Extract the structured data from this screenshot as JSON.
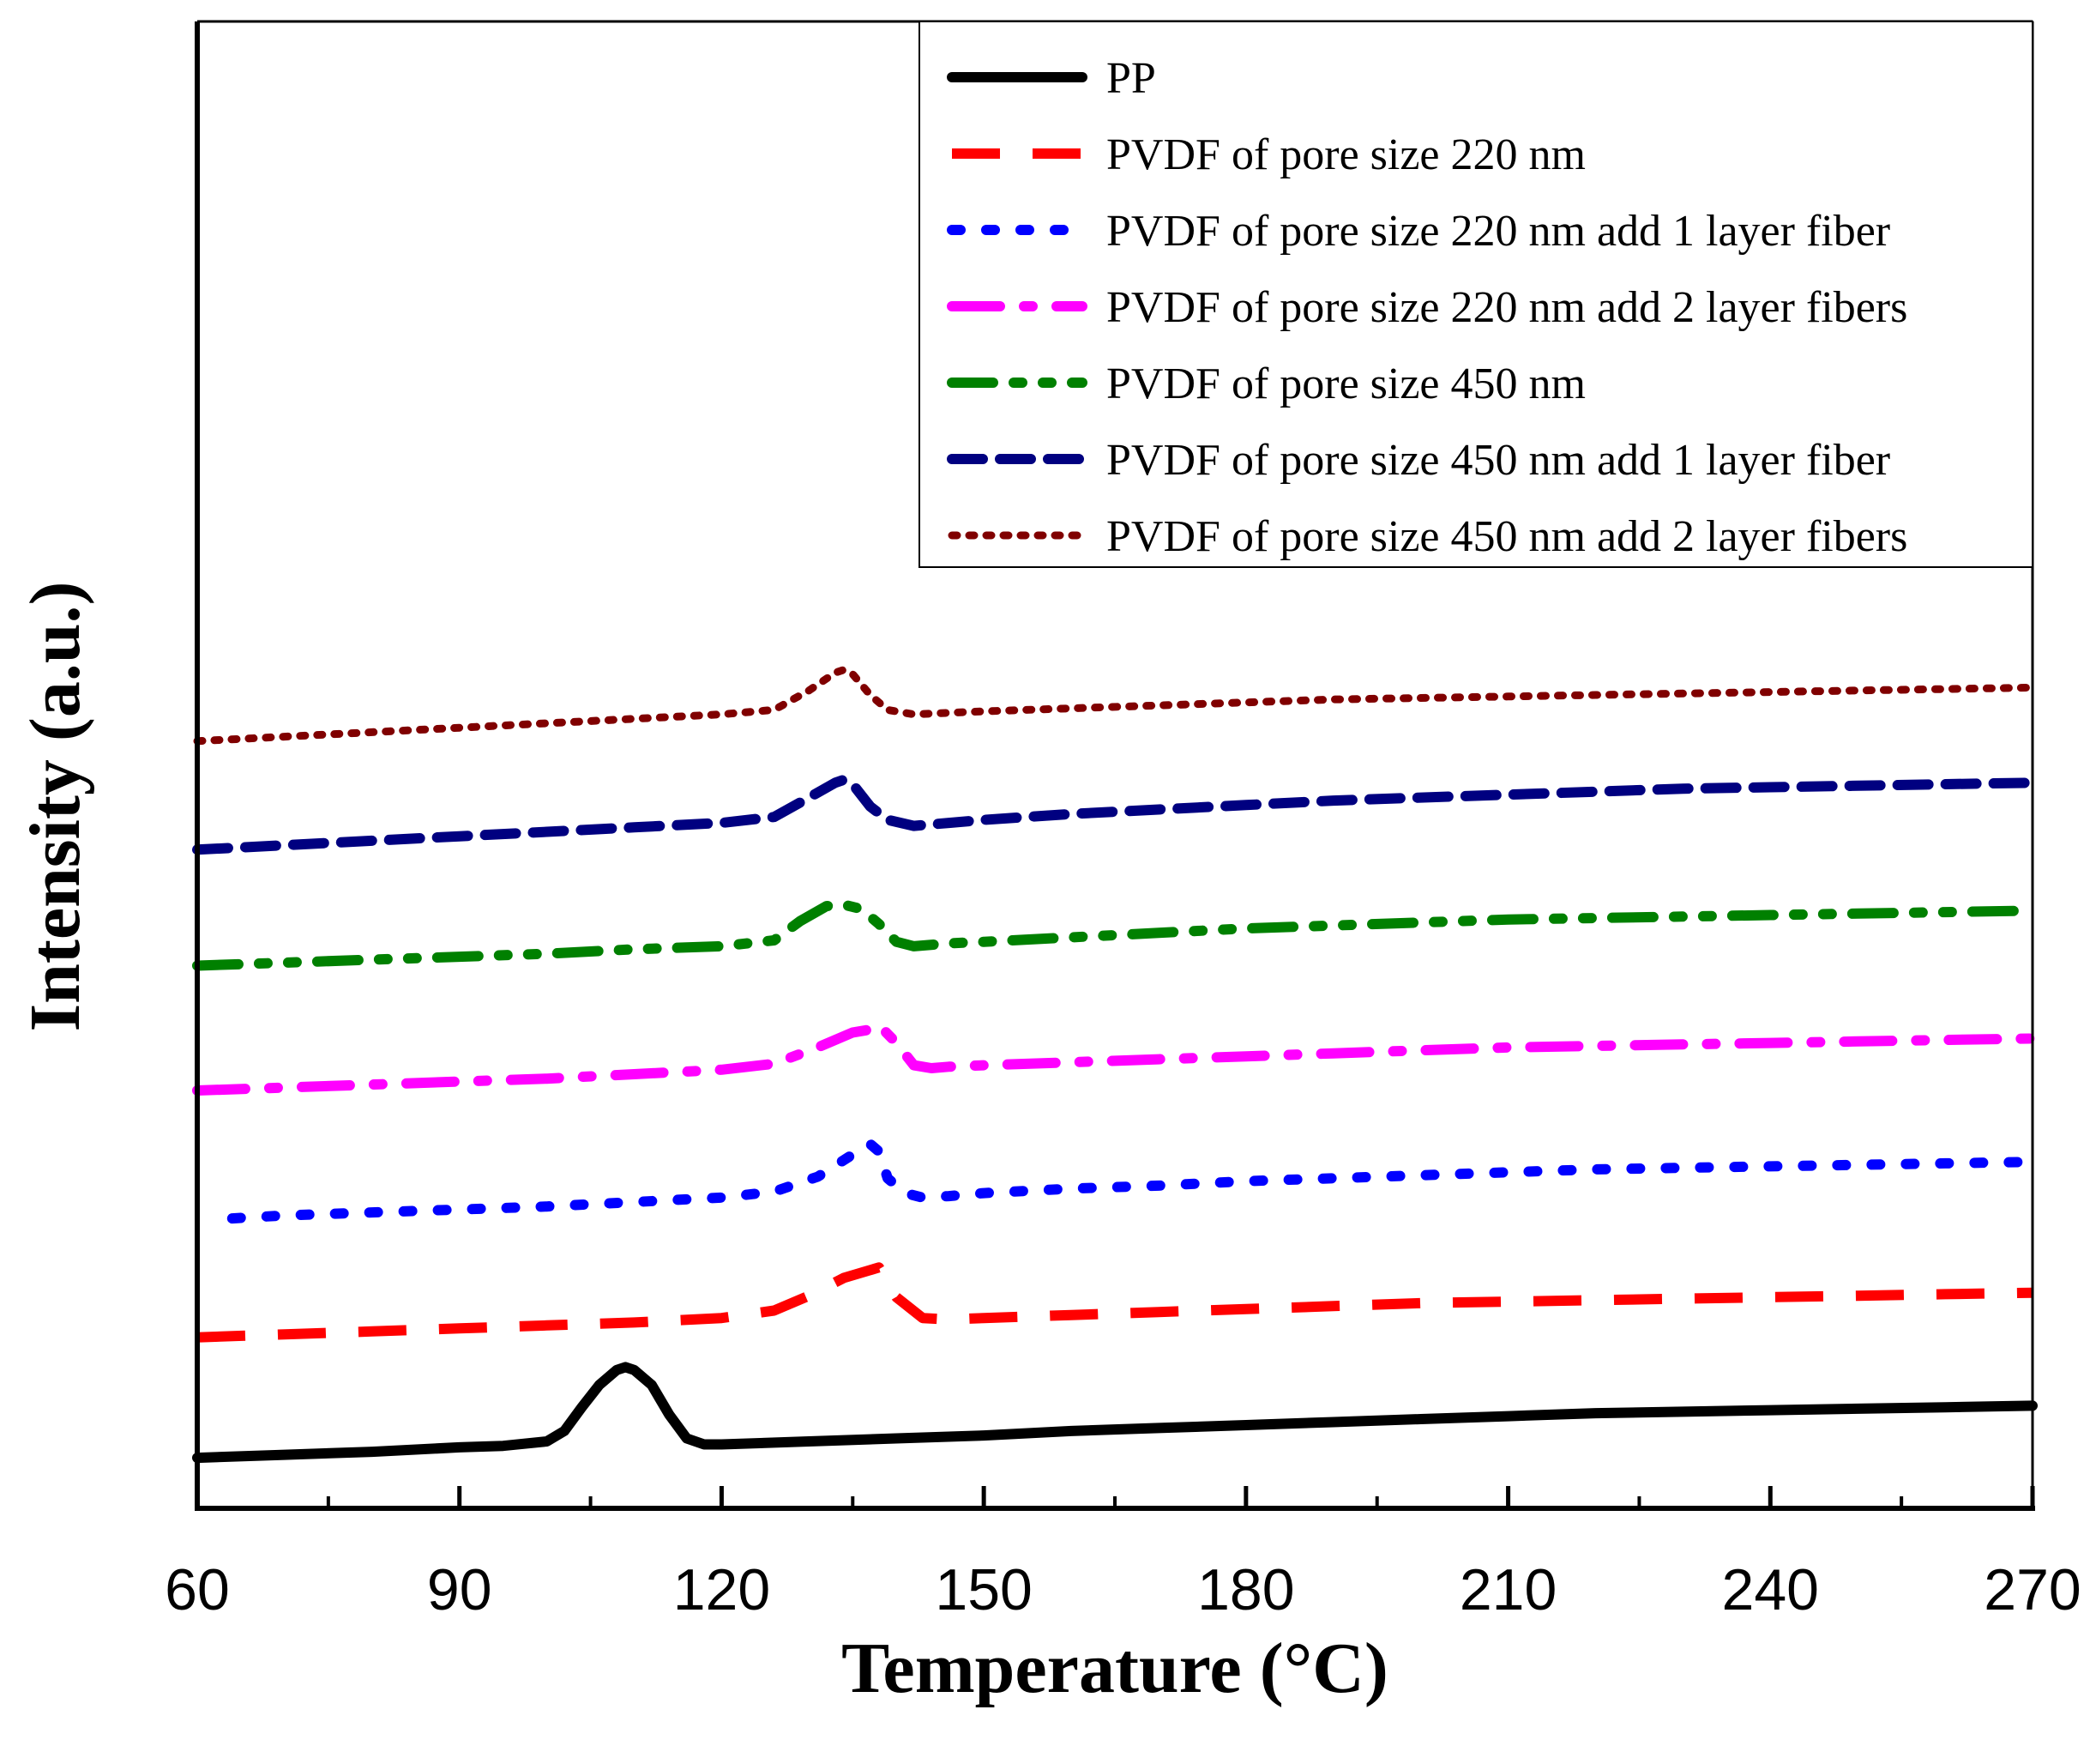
{
  "chart_data": {
    "type": "line",
    "title": "",
    "xlabel": "Temperature (°C)",
    "ylabel": "Intensity (a.u.)",
    "xlim": [
      60,
      270
    ],
    "ylim": [
      0,
      1
    ],
    "x_ticks": [
      60,
      90,
      120,
      150,
      180,
      210,
      240,
      270
    ],
    "y_ticks_shown": false,
    "grid": false,
    "legend_position": "top-right",
    "series": [
      {
        "name": "PP",
        "color": "#000000",
        "style": "solid",
        "x": [
          60,
          70,
          80,
          90,
          95,
          100,
          102,
          104,
          106,
          108,
          109,
          110,
          112,
          114,
          116,
          118,
          120,
          130,
          140,
          150,
          160,
          170,
          180,
          190,
          200,
          210,
          220,
          230,
          240,
          250,
          260,
          270
        ],
        "y": [
          0.034,
          0.036,
          0.038,
          0.041,
          0.042,
          0.045,
          0.052,
          0.068,
          0.083,
          0.093,
          0.095,
          0.093,
          0.083,
          0.063,
          0.047,
          0.043,
          0.043,
          0.045,
          0.047,
          0.049,
          0.052,
          0.054,
          0.056,
          0.058,
          0.06,
          0.062,
          0.064,
          0.065,
          0.066,
          0.067,
          0.068,
          0.069
        ]
      },
      {
        "name": "PVDF of pore size 220 nm",
        "color": "#ff0000",
        "style": "dashed",
        "x": [
          60,
          70,
          80,
          90,
          100,
          110,
          120,
          126,
          130,
          134,
          138,
          140,
          143,
          146,
          150,
          160,
          170,
          180,
          190,
          200,
          210,
          220,
          230,
          240,
          250,
          260,
          270
        ],
        "y": [
          0.115,
          0.117,
          0.119,
          0.121,
          0.123,
          0.125,
          0.128,
          0.133,
          0.143,
          0.155,
          0.162,
          0.142,
          0.128,
          0.127,
          0.128,
          0.13,
          0.132,
          0.134,
          0.136,
          0.138,
          0.139,
          0.14,
          0.141,
          0.142,
          0.143,
          0.144,
          0.145
        ]
      },
      {
        "name": "PVDF of pore size 220 nm add 1 layer fiber",
        "color": "#0000ff",
        "style": "dotted",
        "x": [
          64,
          70,
          80,
          90,
          100,
          110,
          120,
          126,
          131,
          135,
          137,
          138,
          139,
          141,
          143,
          146,
          150,
          160,
          170,
          180,
          190,
          200,
          210,
          220,
          230,
          240,
          250,
          260,
          270
        ],
        "y": [
          0.195,
          0.197,
          0.199,
          0.201,
          0.203,
          0.206,
          0.209,
          0.213,
          0.223,
          0.238,
          0.245,
          0.24,
          0.222,
          0.212,
          0.209,
          0.21,
          0.212,
          0.215,
          0.217,
          0.22,
          0.222,
          0.224,
          0.226,
          0.228,
          0.229,
          0.23,
          0.231,
          0.232,
          0.233
        ]
      },
      {
        "name": "PVDF of pore size 220 nm add 2 layer fibers",
        "color": "#ff00ff",
        "style": "dashdot",
        "x": [
          60,
          70,
          80,
          90,
          100,
          110,
          120,
          126,
          131,
          135,
          137,
          138,
          140,
          142,
          144,
          146,
          150,
          160,
          170,
          180,
          190,
          200,
          210,
          220,
          230,
          240,
          250,
          260,
          270
        ],
        "y": [
          0.281,
          0.283,
          0.285,
          0.287,
          0.289,
          0.292,
          0.295,
          0.299,
          0.31,
          0.32,
          0.322,
          0.325,
          0.313,
          0.298,
          0.296,
          0.297,
          0.298,
          0.3,
          0.302,
          0.304,
          0.306,
          0.308,
          0.31,
          0.311,
          0.312,
          0.313,
          0.314,
          0.315,
          0.316
        ]
      },
      {
        "name": "PVDF of pore size 450 nm",
        "color": "#008000",
        "style": "dashdotdot",
        "x": [
          60,
          70,
          80,
          90,
          100,
          110,
          120,
          126,
          129,
          132,
          134,
          136,
          138,
          140,
          142,
          146,
          150,
          160,
          170,
          180,
          190,
          200,
          210,
          220,
          230,
          240,
          250,
          260,
          270
        ],
        "y": [
          0.365,
          0.367,
          0.369,
          0.371,
          0.373,
          0.376,
          0.378,
          0.382,
          0.395,
          0.405,
          0.406,
          0.403,
          0.393,
          0.381,
          0.378,
          0.38,
          0.381,
          0.384,
          0.387,
          0.39,
          0.392,
          0.394,
          0.396,
          0.397,
          0.398,
          0.399,
          0.4,
          0.401,
          0.402
        ]
      },
      {
        "name": "PVDF of pore size 450 nm add 1 layer fiber",
        "color": "#000080",
        "style": "shortdash",
        "x": [
          60,
          70,
          80,
          90,
          100,
          110,
          120,
          126,
          130,
          133,
          134,
          135,
          137,
          139,
          142,
          146,
          150,
          160,
          170,
          180,
          190,
          200,
          210,
          220,
          230,
          240,
          250,
          260,
          270
        ],
        "y": [
          0.443,
          0.446,
          0.449,
          0.452,
          0.455,
          0.458,
          0.461,
          0.465,
          0.478,
          0.488,
          0.49,
          0.487,
          0.472,
          0.463,
          0.459,
          0.461,
          0.463,
          0.467,
          0.47,
          0.473,
          0.476,
          0.478,
          0.48,
          0.482,
          0.484,
          0.485,
          0.486,
          0.487,
          0.488
        ]
      },
      {
        "name": "PVDF of pore size 450 nm add 2 layer fibers",
        "color": "#800000",
        "style": "shortdot",
        "x": [
          60,
          70,
          80,
          90,
          100,
          110,
          120,
          126,
          130,
          133,
          134,
          135,
          137,
          139,
          142,
          146,
          150,
          160,
          170,
          180,
          190,
          200,
          210,
          220,
          230,
          240,
          250,
          260,
          270
        ],
        "y": [
          0.516,
          0.519,
          0.522,
          0.525,
          0.528,
          0.531,
          0.534,
          0.537,
          0.55,
          0.562,
          0.564,
          0.561,
          0.547,
          0.537,
          0.534,
          0.535,
          0.536,
          0.538,
          0.54,
          0.542,
          0.544,
          0.545,
          0.546,
          0.547,
          0.548,
          0.549,
          0.55,
          0.551,
          0.552
        ]
      }
    ]
  }
}
